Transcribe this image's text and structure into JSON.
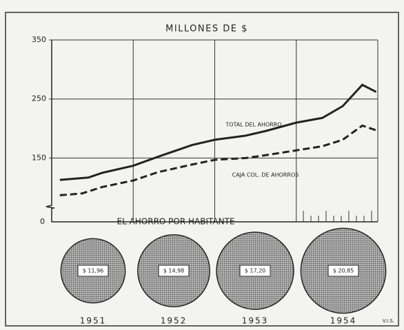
{
  "chart_data": [
    {
      "type": "line",
      "title": "MILLONES DE $",
      "xlim": [
        1951,
        1955
      ],
      "xticks": [
        1952,
        1953,
        1954
      ],
      "ylim": [
        70,
        350
      ],
      "yticks": [
        150,
        250,
        350
      ],
      "y_break_label": "0",
      "grid": true,
      "series": [
        {
          "name": "TOTAL DEL AHORRO",
          "color": "#222",
          "dash": false,
          "x": [
            1951.1,
            1951.45,
            1951.62,
            1952,
            1952.3,
            1952.72,
            1953,
            1953.38,
            1953.63,
            1954,
            1954.32,
            1954.57,
            1954.81,
            1954.98
          ],
          "values": [
            113,
            117,
            125,
            137,
            152,
            172,
            181,
            188,
            196,
            210,
            218,
            238,
            274,
            262
          ]
        },
        {
          "name": "CAJA COL. DE AHORROS",
          "color": "#222",
          "dash": true,
          "x": [
            1951.1,
            1951.37,
            1951.62,
            1952,
            1952.3,
            1952.72,
            1953,
            1953.38,
            1953.63,
            1954,
            1954.32,
            1954.57,
            1954.81,
            1954.98
          ],
          "values": [
            87,
            90,
            101,
            112,
            126,
            139,
            147,
            150,
            155,
            163,
            170,
            181,
            205,
            197
          ]
        }
      ]
    },
    {
      "type": "circle",
      "title": "EL AHORRO POR HABITANTE",
      "categories": [
        "1951",
        "1952",
        "1953",
        "1954"
      ],
      "values": [
        11.96,
        14.98,
        17.2,
        20.85
      ],
      "value_labels": [
        "$ 11,96",
        "$ 14,98",
        "$ 17,20",
        "$ 20,85"
      ],
      "color": "#8a8a8a",
      "credit": "V.I.S."
    }
  ]
}
